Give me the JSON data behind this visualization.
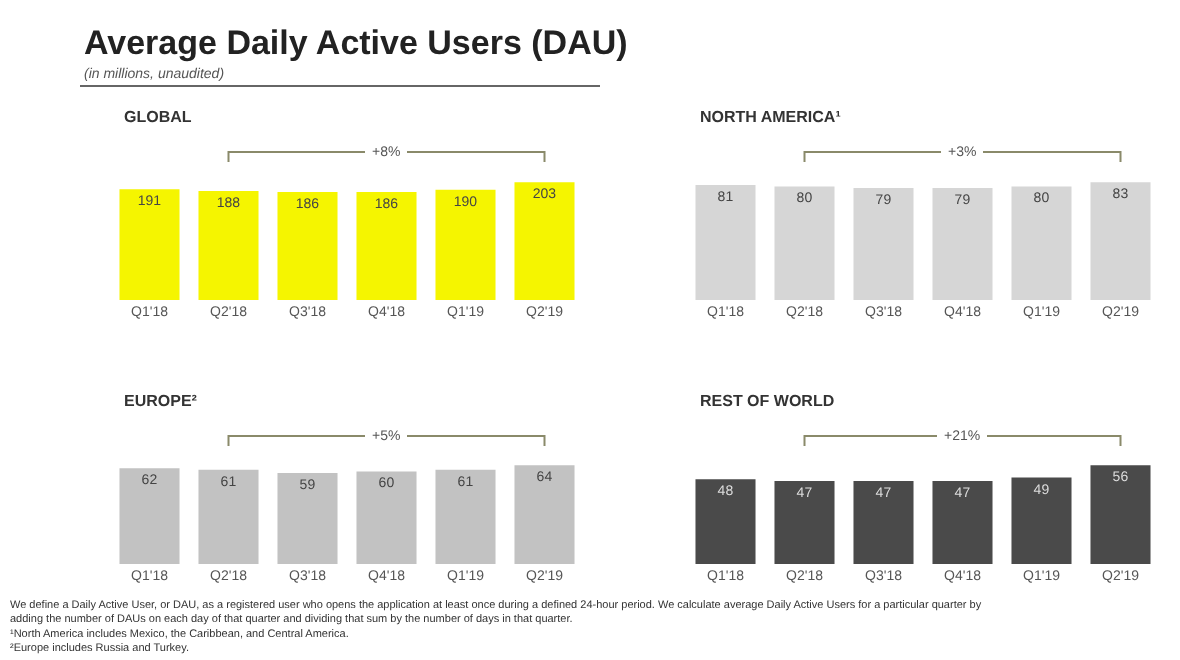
{
  "chart_data": [
    {
      "type": "other",
      "title": "Average Daily Active Users (DAU)",
      "subtitle": "(in millions, unaudited)",
      "annotations": [
        "We define a Daily Active User, or DAU, as a registered user who opens the application at least once during a defined 24-hour period. We calculate average Daily Active Users for a particular quarter by adding the number of DAUs on each day of that quarter and dividing that sum by the number of days in that quarter.",
        "¹North America includes Mexico, the Caribbean, and Central America.",
        "²Europe includes Russia and Turkey."
      ]
    },
    {
      "type": "bar",
      "title": "GLOBAL",
      "categories": [
        "Q1'18",
        "Q2'18",
        "Q3'18",
        "Q4'18",
        "Q1'19",
        "Q2'19"
      ],
      "values": [
        191,
        188,
        186,
        186,
        190,
        203
      ],
      "color": "#f5f500",
      "data_labels": true,
      "annotations": [
        "+8%"
      ]
    },
    {
      "type": "bar",
      "title": "NORTH AMERICA¹",
      "categories": [
        "Q1'18",
        "Q2'18",
        "Q3'18",
        "Q4'18",
        "Q1'19",
        "Q2'19"
      ],
      "values": [
        81,
        80,
        79,
        79,
        80,
        83
      ],
      "color": "#d6d6d6",
      "data_labels": true,
      "annotations": [
        "+3%"
      ]
    },
    {
      "type": "bar",
      "title": "EUROPE²",
      "categories": [
        "Q1'18",
        "Q2'18",
        "Q3'18",
        "Q4'18",
        "Q1'19",
        "Q2'19"
      ],
      "values": [
        62,
        61,
        59,
        60,
        61,
        64
      ],
      "color": "#c2c2c2",
      "data_labels": true,
      "annotations": [
        "+5%"
      ]
    },
    {
      "type": "bar",
      "title": "REST OF WORLD",
      "categories": [
        "Q1'18",
        "Q2'18",
        "Q3'18",
        "Q4'18",
        "Q1'19",
        "Q2'19"
      ],
      "values": [
        48,
        47,
        47,
        47,
        49,
        56
      ],
      "color": "#4a4a4a",
      "data_labels": true,
      "annotations": [
        "+21%"
      ]
    }
  ]
}
